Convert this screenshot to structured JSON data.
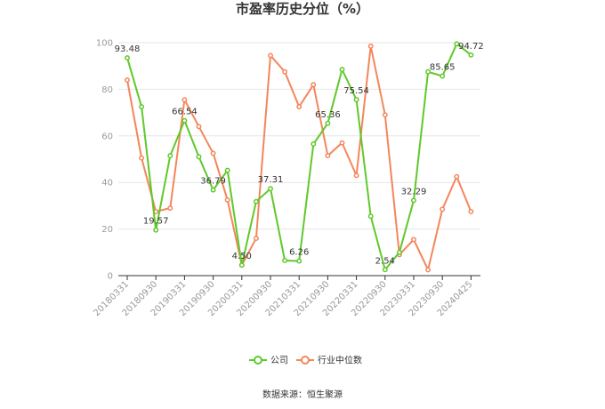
{
  "chart_data": {
    "type": "line",
    "title": "市盈率历史分位（%）",
    "source": "数据来源：恒生聚源",
    "ylim": [
      0,
      100
    ],
    "yticks": [
      "0",
      "20",
      "40",
      "60",
      "80",
      "100"
    ],
    "xtick_labels": [
      "20180331",
      "20180930",
      "20190331",
      "20190930",
      "20200331",
      "20200930",
      "20210331",
      "20210930",
      "20220331",
      "20220930",
      "20230331",
      "20230930",
      "20240425"
    ],
    "legend_position": "bottom",
    "grid": true,
    "series": [
      {
        "name": "公司",
        "color": "#5fc92a",
        "values": [
          93.48,
          72.5,
          19.57,
          51.5,
          66.54,
          51.0,
          36.79,
          45.2,
          4.5,
          31.8,
          37.31,
          6.5,
          6.26,
          56.5,
          65.36,
          88.5,
          75.54,
          25.5,
          2.54,
          10.0,
          32.29,
          87.5,
          85.65,
          99.5,
          94.72
        ],
        "labels": {
          "0": "93.48",
          "2": "19.57",
          "4": "66.54",
          "6": "36.79",
          "8": "4.50",
          "10": "37.31",
          "12": "6.26",
          "14": "65.36",
          "16": "75.54",
          "18": "2.54",
          "20": "32.29",
          "22": "85.65",
          "24": "94.72"
        }
      },
      {
        "name": "行业中位数",
        "color": "#f4865b",
        "values": [
          84.0,
          50.5,
          27.5,
          29.0,
          75.5,
          64.0,
          52.5,
          32.5,
          4.5,
          16.0,
          94.5,
          87.5,
          72.5,
          82.0,
          51.5,
          57.0,
          43.0,
          98.5,
          69.0,
          9.0,
          15.5,
          2.5,
          28.5,
          42.5,
          27.5
        ]
      }
    ]
  }
}
